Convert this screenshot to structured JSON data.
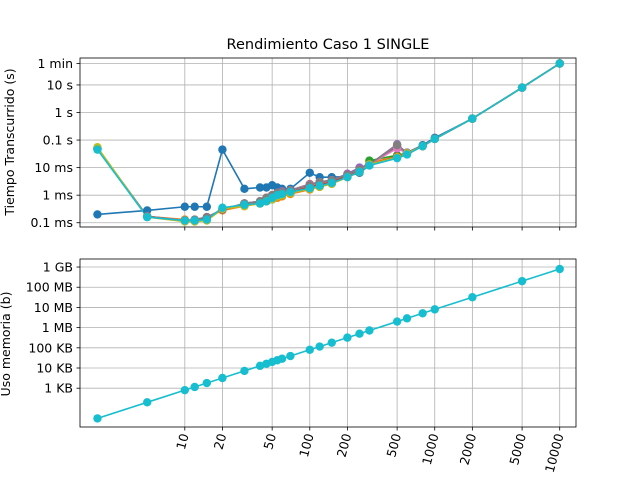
{
  "chart_data": [
    {
      "type": "line",
      "title": "Rendimiento Caso 1 SINGLE",
      "xlabel": "",
      "ylabel": "Tiempo Transcurrido (s)",
      "xscale": "log",
      "yscale": "log",
      "grid": true,
      "xlim": [
        1.45,
        13500
      ],
      "ylim": [
        7e-05,
        95
      ],
      "yticks": [
        {
          "value": 0.0001,
          "label": "0.1 ms"
        },
        {
          "value": 0.001,
          "label": "1 ms"
        },
        {
          "value": 0.01,
          "label": "10 ms"
        },
        {
          "value": 0.1,
          "label": "0.1 s"
        },
        {
          "value": 1,
          "label": "1 s"
        },
        {
          "value": 10,
          "label": "10 s"
        },
        {
          "value": 60,
          "label": "1 min"
        }
      ],
      "x": [
        2,
        5,
        10,
        12,
        15,
        20,
        30,
        40,
        45,
        50,
        55,
        60,
        70,
        100,
        120,
        150,
        200,
        250,
        300,
        500,
        600,
        800,
        1000,
        2000,
        5000,
        10000
      ],
      "series": [
        {
          "color": "#1f77b4",
          "values": [
            0.0002,
            0.00028,
            0.00038,
            0.00038,
            0.00038,
            0.045,
            0.0017,
            0.0019,
            0.0019,
            0.0023,
            0.0019,
            0.0017,
            0.0017,
            0.0065,
            0.0045,
            0.0045,
            0.0048,
            0.0065,
            0.012,
            0.025,
            0.035,
            0.065,
            0.12,
            0.6,
            8,
            60
          ]
        },
        {
          "color": "#ff7f0e",
          "values": [
            0.05,
            0.00017,
            0.00013,
            0.00012,
            0.00015,
            0.00028,
            0.0004,
            0.0005,
            0.0006,
            0.0007,
            0.0008,
            0.0009,
            0.0011,
            0.0016,
            0.002,
            0.0026,
            0.0045,
            0.007,
            0.015,
            0.025,
            0.033,
            0.06,
            0.11,
            0.6,
            8,
            60
          ]
        },
        {
          "color": "#2ca02c",
          "values": [
            0.05,
            0.00017,
            0.00012,
            0.00012,
            0.00014,
            0.0003,
            0.00045,
            0.0005,
            0.0006,
            0.0007,
            0.0009,
            0.001,
            0.0012,
            0.0017,
            0.0021,
            0.0027,
            0.0046,
            0.0072,
            0.018,
            0.028,
            0.034,
            0.06,
            0.11,
            0.6,
            8,
            60
          ]
        },
        {
          "color": "#d62728",
          "values": [
            0.05,
            0.00017,
            0.00012,
            0.00012,
            0.00014,
            0.0003,
            0.00045,
            0.00055,
            0.0007,
            0.0008,
            0.001,
            0.0011,
            0.0013,
            0.002,
            0.0025,
            0.003,
            0.005,
            0.0075,
            0.013,
            0.025,
            0.034,
            0.06,
            0.11,
            0.6,
            8,
            60
          ]
        },
        {
          "color": "#9467bd",
          "values": [
            0.05,
            0.00017,
            0.00012,
            0.00012,
            0.00015,
            0.0003,
            0.0005,
            0.0006,
            0.0008,
            0.001,
            0.0012,
            0.0014,
            0.0015,
            0.0025,
            0.003,
            0.0035,
            0.006,
            0.01,
            0.013,
            0.07,
            0.034,
            0.06,
            0.11,
            0.6,
            8,
            60
          ]
        },
        {
          "color": "#8c564b",
          "values": [
            0.05,
            0.00017,
            0.00012,
            0.00012,
            0.00015,
            0.0003,
            0.0005,
            0.0006,
            0.0008,
            0.001,
            0.0012,
            0.0013,
            0.0015,
            0.0025,
            0.003,
            0.0035,
            0.0055,
            0.0085,
            0.013,
            0.06,
            0.034,
            0.06,
            0.11,
            0.6,
            8,
            60
          ]
        },
        {
          "color": "#e377c2",
          "values": [
            0.05,
            0.00017,
            0.00012,
            0.00013,
            0.00016,
            0.0003,
            0.0005,
            0.0006,
            0.0008,
            0.001,
            0.0012,
            0.0013,
            0.0015,
            0.0024,
            0.003,
            0.0035,
            0.0055,
            0.0085,
            0.013,
            0.05,
            0.034,
            0.06,
            0.11,
            0.6,
            8,
            60
          ]
        },
        {
          "color": "#7f7f7f",
          "values": [
            0.05,
            0.00017,
            0.00012,
            0.00013,
            0.00016,
            0.0003,
            0.0005,
            0.0006,
            0.0008,
            0.001,
            0.0012,
            0.0013,
            0.0015,
            0.0023,
            0.003,
            0.0035,
            0.0055,
            0.0085,
            0.013,
            0.065,
            0.034,
            0.06,
            0.11,
            0.6,
            8,
            60
          ]
        },
        {
          "color": "#bcbd22",
          "values": [
            0.055,
            0.00016,
            0.00011,
            0.00011,
            0.00012,
            0.00032,
            0.0004,
            0.0005,
            0.0006,
            0.0007,
            0.0009,
            0.001,
            0.0012,
            0.0017,
            0.002,
            0.0026,
            0.0045,
            0.007,
            0.013,
            0.024,
            0.033,
            0.06,
            0.11,
            0.6,
            8,
            60
          ]
        },
        {
          "color": "#17becf",
          "values": [
            0.045,
            0.00016,
            0.00012,
            0.00012,
            0.00013,
            0.00035,
            0.00045,
            0.0005,
            0.0006,
            0.0008,
            0.001,
            0.0011,
            0.0013,
            0.0018,
            0.0022,
            0.0028,
            0.0045,
            0.007,
            0.012,
            0.022,
            0.03,
            0.06,
            0.11,
            0.6,
            8,
            60
          ]
        }
      ]
    },
    {
      "type": "line",
      "xlabel": "",
      "ylabel": "Uso memoria (b)",
      "xscale": "log",
      "yscale": "log",
      "grid": true,
      "xlim": [
        1.45,
        13500
      ],
      "ylim": [
        12,
        2500000000.0
      ],
      "yticks": [
        {
          "value": 1000,
          "label": "1 KB"
        },
        {
          "value": 10000,
          "label": "10 KB"
        },
        {
          "value": 100000,
          "label": "100 KB"
        },
        {
          "value": 1000000,
          "label": "1 MB"
        },
        {
          "value": 10000000,
          "label": "10 MB"
        },
        {
          "value": 100000000,
          "label": "100 MB"
        },
        {
          "value": 1000000000,
          "label": "1 GB"
        }
      ],
      "xticks": [
        {
          "value": 10,
          "label": "10"
        },
        {
          "value": 20,
          "label": "20"
        },
        {
          "value": 50,
          "label": "50"
        },
        {
          "value": 100,
          "label": "100"
        },
        {
          "value": 200,
          "label": "200"
        },
        {
          "value": 500,
          "label": "500"
        },
        {
          "value": 1000,
          "label": "1000"
        },
        {
          "value": 2000,
          "label": "2000"
        },
        {
          "value": 5000,
          "label": "5000"
        },
        {
          "value": 10000,
          "label": "10000"
        }
      ],
      "x": [
        2,
        5,
        10,
        12,
        15,
        20,
        30,
        40,
        45,
        50,
        55,
        60,
        70,
        100,
        120,
        150,
        200,
        250,
        300,
        500,
        600,
        800,
        1000,
        2000,
        5000,
        10000
      ],
      "series": [
        {
          "color": "#17becf",
          "values": [
            32,
            200,
            800,
            1150,
            1800,
            3200,
            7200,
            12800,
            16200,
            20000,
            24200,
            28800,
            39200,
            80000,
            115200,
            180000,
            320000,
            500000,
            720000,
            2000000,
            2880000,
            5120000,
            8000000,
            32000000,
            200000000,
            800000000
          ]
        }
      ]
    }
  ]
}
